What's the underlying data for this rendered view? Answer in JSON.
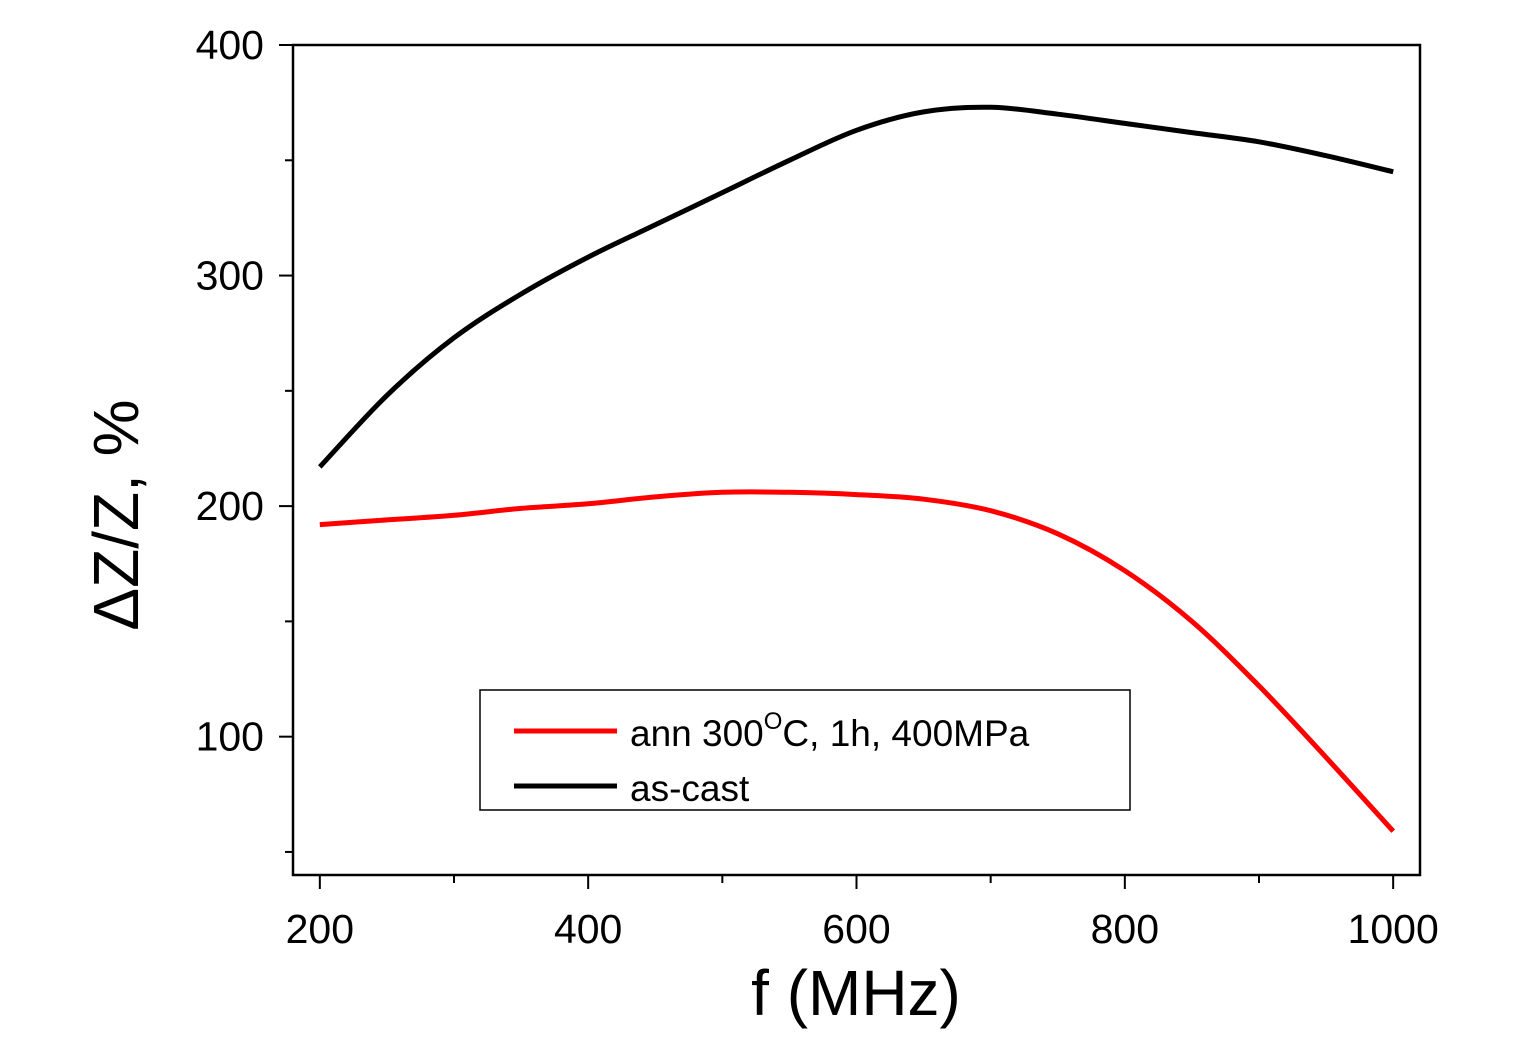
{
  "chart_data": {
    "type": "line",
    "title": "",
    "xlabel": "f (MHz)",
    "ylabel": "ΔZ/Z,  %",
    "xlim": [
      180,
      1020
    ],
    "ylim": [
      40,
      400
    ],
    "x_ticks": [
      "200",
      "400",
      "600",
      "800",
      "1000"
    ],
    "y_ticks": [
      "100",
      "200",
      "300",
      "400"
    ],
    "legend_position": "bottom-center",
    "series": [
      {
        "name": "ann 300OC, 1h, 400MPa",
        "name_parts": {
          "prefix": "ann 300",
          "sup": "O",
          "suffix": "C, 1h, 400MPa"
        },
        "color": "#ff0000",
        "x": [
          200,
          250,
          300,
          350,
          400,
          450,
          500,
          550,
          600,
          650,
          700,
          750,
          800,
          850,
          900,
          950,
          1000
        ],
        "y": [
          192,
          194,
          196,
          199,
          201,
          204,
          206,
          206,
          205,
          203,
          198,
          188,
          172,
          150,
          122,
          91,
          59
        ]
      },
      {
        "name": "as-cast",
        "color": "#000000",
        "x": [
          200,
          250,
          300,
          350,
          400,
          450,
          500,
          550,
          600,
          650,
          700,
          750,
          800,
          850,
          900,
          950,
          1000
        ],
        "y": [
          217,
          248,
          273,
          292,
          308,
          322,
          336,
          350,
          363,
          371,
          373,
          370,
          366,
          362,
          358,
          352,
          345
        ]
      }
    ]
  }
}
